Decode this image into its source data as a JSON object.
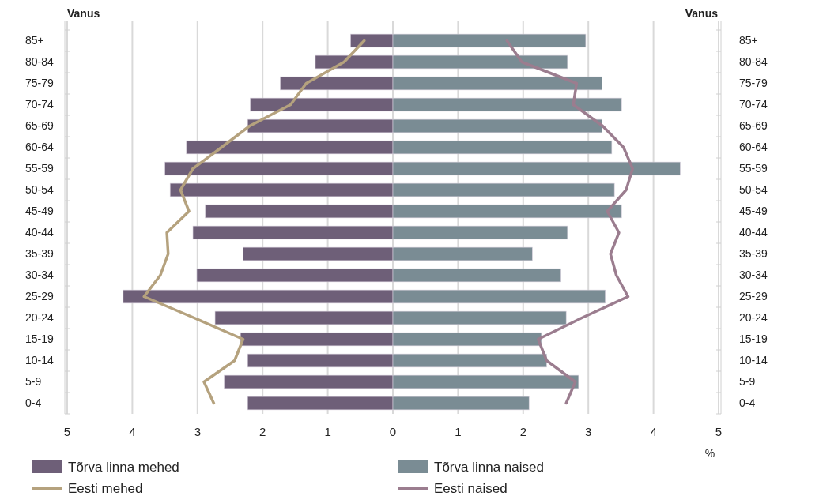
{
  "chart_data": {
    "type": "bar",
    "orientation": "horizontal",
    "ylabel": "Vanus",
    "y2label": "Vanus",
    "xlabel": "%",
    "categories": [
      "85+",
      "80-84",
      "75-79",
      "70-74",
      "65-69",
      "60-64",
      "55-59",
      "50-54",
      "45-49",
      "40-44",
      "35-39",
      "30-34",
      "25-29",
      "20-24",
      "15-19",
      "10-14",
      "5-9",
      "0-4"
    ],
    "y2_categories": [
      "85+",
      "80-84",
      "75-79",
      "70-74",
      "65-69",
      "60-64",
      "55-59",
      "50-54",
      "45-49",
      "40-44",
      "35-39",
      "30-34",
      "25-29",
      "20-24",
      "15-19",
      "10-14",
      "5-9",
      "0-4"
    ],
    "xlim": [
      -5,
      5
    ],
    "xticks": [
      {
        "value": -5,
        "label": "5"
      },
      {
        "value": -4,
        "label": "4"
      },
      {
        "value": -3,
        "label": "3"
      },
      {
        "value": -2,
        "label": "2"
      },
      {
        "value": -1,
        "label": "1"
      },
      0,
      1,
      2,
      3,
      4,
      5
    ],
    "grid": "x",
    "legend": "bottom",
    "stacked": true,
    "series": [
      {
        "name": "Tõrva linna mehed",
        "color": "#6e5f78",
        "values": [
          -0.65,
          -1.19,
          -1.73,
          -2.19,
          -2.23,
          -3.17,
          -3.5,
          -3.42,
          -2.88,
          -3.07,
          -2.3,
          -3.01,
          -4.14,
          -2.73,
          -2.34,
          -2.23,
          -2.59,
          -2.23
        ]
      },
      {
        "name": "Tõrva linna naised",
        "color": "#7a8c94",
        "values": [
          2.96,
          2.68,
          3.21,
          3.51,
          3.21,
          3.36,
          4.41,
          3.4,
          3.51,
          2.68,
          2.14,
          2.58,
          3.26,
          2.66,
          2.28,
          2.36,
          2.85,
          2.09
        ]
      },
      {
        "name": "Eesti mehed",
        "type": "line",
        "color": "#b5a27e",
        "values": [
          -0.44,
          -0.75,
          -1.33,
          -1.57,
          -2.2,
          -2.63,
          -3.07,
          -3.26,
          -3.13,
          -3.47,
          -3.45,
          -3.57,
          -3.82,
          -3.05,
          -2.3,
          -2.43,
          -2.9,
          -2.75
        ]
      },
      {
        "name": "Eesti naised",
        "type": "line",
        "color": "#9b7d8f",
        "values": [
          1.75,
          1.98,
          2.82,
          2.77,
          3.22,
          3.54,
          3.68,
          3.58,
          3.29,
          3.47,
          3.34,
          3.43,
          3.61,
          2.9,
          2.23,
          2.36,
          2.8,
          2.66
        ]
      }
    ]
  }
}
